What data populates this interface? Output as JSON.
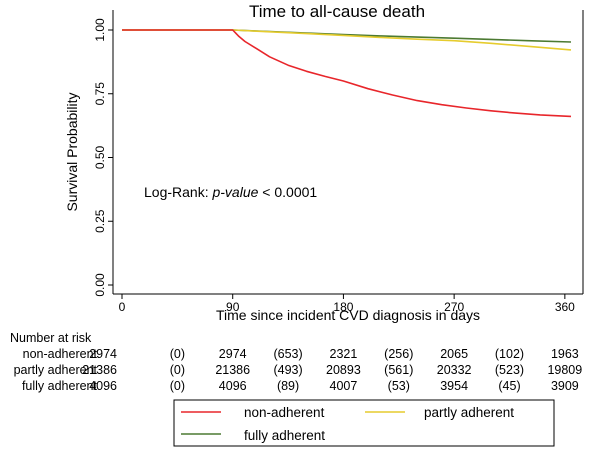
{
  "chart_data": {
    "type": "line",
    "title": "Time to all-cause death",
    "xlabel": "Time since incident CVD diagnosis in days",
    "ylabel": "Survival Probability",
    "xlim": [
      0,
      365
    ],
    "ylim": [
      0,
      1
    ],
    "x_ticks": [
      "0",
      "90",
      "180",
      "270",
      "360"
    ],
    "y_ticks": [
      "0.00",
      "0.25",
      "0.50",
      "0.75",
      "1.00"
    ],
    "grid": false,
    "legend_position": "bottom",
    "annotation": {
      "prefix": "Log-Rank: ",
      "italic": "p-value",
      "suffix": " < 0.0001"
    },
    "series": [
      {
        "name": "non-adherent",
        "color": "#e8262b",
        "x": [
          0,
          90,
          92,
          95,
          100,
          110,
          120,
          135,
          150,
          165,
          180,
          200,
          220,
          240,
          260,
          280,
          300,
          320,
          340,
          365
        ],
        "y": [
          1.0,
          1.0,
          0.99,
          0.975,
          0.955,
          0.925,
          0.895,
          0.862,
          0.838,
          0.818,
          0.8,
          0.77,
          0.745,
          0.723,
          0.707,
          0.694,
          0.683,
          0.674,
          0.667,
          0.661
        ]
      },
      {
        "name": "partly adherent",
        "color": "#e6cc2e",
        "x": [
          0,
          90,
          120,
          150,
          180,
          210,
          240,
          270,
          300,
          330,
          365
        ],
        "y": [
          1.0,
          1.0,
          0.993,
          0.986,
          0.979,
          0.971,
          0.964,
          0.958,
          0.948,
          0.936,
          0.922
        ]
      },
      {
        "name": "fully adherent",
        "color": "#4c7a32",
        "x": [
          0,
          90,
          120,
          150,
          180,
          210,
          240,
          270,
          300,
          330,
          365
        ],
        "y": [
          1.0,
          1.0,
          0.994,
          0.988,
          0.982,
          0.977,
          0.972,
          0.968,
          0.963,
          0.958,
          0.953
        ]
      }
    ]
  },
  "risk_table": {
    "header": "Number at risk",
    "rows": [
      {
        "label": "non-adherent",
        "values": [
          "2974",
          "(0)",
          "2974",
          "(653)",
          "2321",
          "(256)",
          "2065",
          "(102)",
          "1963"
        ]
      },
      {
        "label": "partly adherent",
        "values": [
          "21386",
          "(0)",
          "21386",
          "(493)",
          "20893",
          "(561)",
          "20332",
          "(523)",
          "19809"
        ]
      },
      {
        "label": "fully adherent",
        "values": [
          "4096",
          "(0)",
          "4096",
          "(89)",
          "4007",
          "(53)",
          "3954",
          "(45)",
          "3909"
        ]
      }
    ]
  }
}
